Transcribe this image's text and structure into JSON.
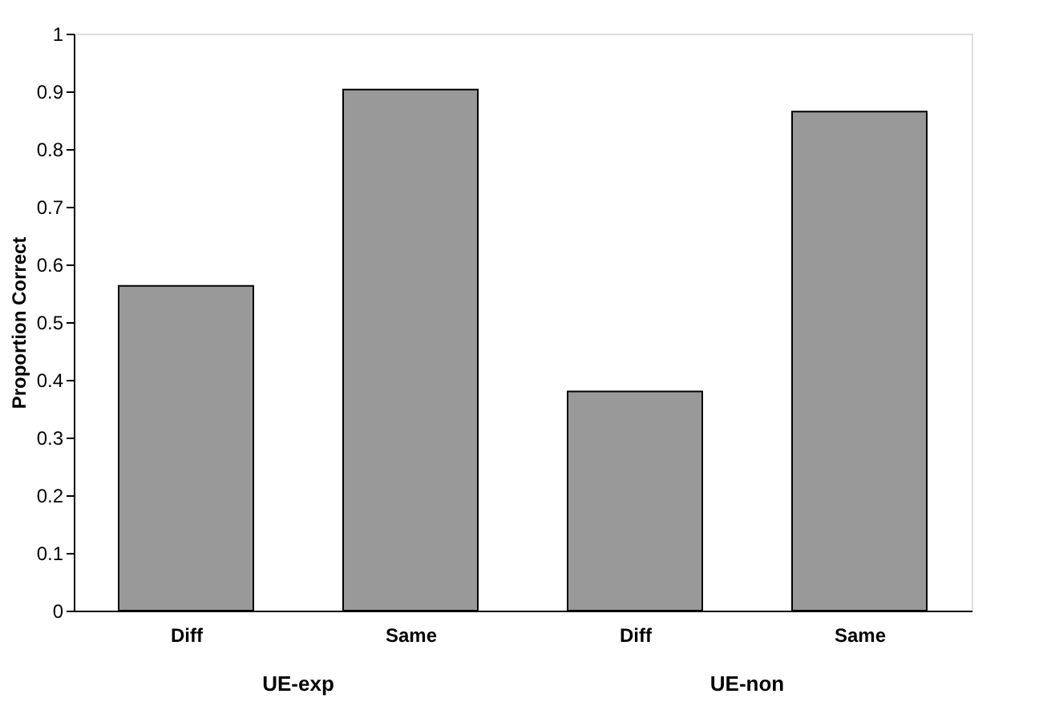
{
  "chart_data": {
    "type": "bar",
    "ylabel": "Proportion Correct",
    "categories": [
      "Diff",
      "Same",
      "Diff",
      "Same"
    ],
    "values": [
      0.563,
      0.903,
      0.38,
      0.865
    ],
    "color": "#999999",
    "ylim": [
      0,
      1
    ],
    "yticks": [
      0,
      0.1,
      0.2,
      0.3,
      0.4,
      0.5,
      0.6,
      0.7,
      0.8,
      0.9,
      1
    ],
    "grid": false,
    "annotations": [
      "UE-exp",
      "UE-non"
    ]
  }
}
